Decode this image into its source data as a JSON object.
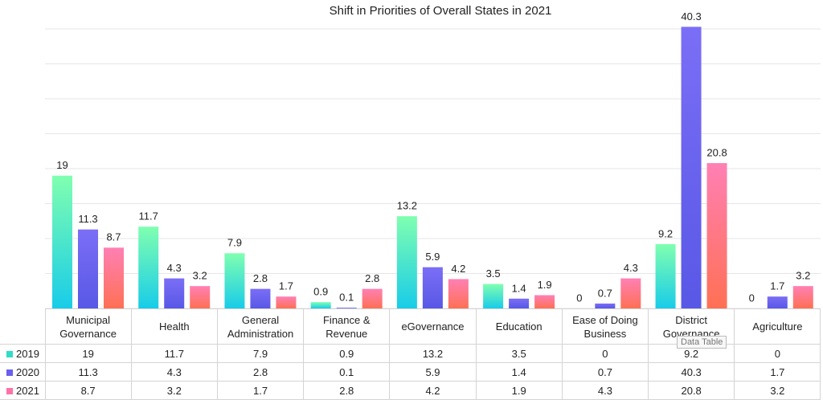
{
  "chart_data": {
    "type": "bar",
    "title": "Shift in Priorities of Overall States in 2021",
    "categories": [
      "Municipal Governance",
      "Health",
      "General Administration",
      "Finance & Revenue",
      "eGovernance",
      "Education",
      "Ease of Doing Business",
      "District Governance",
      "Agriculture"
    ],
    "series": [
      {
        "name": "2019",
        "color": "#2fdcc8",
        "gradient": [
          "#80ffb0",
          "#18cce8"
        ],
        "values": [
          19,
          11.7,
          7.9,
          0.9,
          13.2,
          3.5,
          0,
          9.2,
          0
        ]
      },
      {
        "name": "2020",
        "color": "#6a60ee",
        "gradient": [
          "#7b6ef6",
          "#5858e6"
        ],
        "values": [
          11.3,
          4.3,
          2.8,
          0.1,
          5.9,
          1.4,
          0.7,
          40.3,
          1.7
        ]
      },
      {
        "name": "2021",
        "color": "#ff72a8",
        "gradient": [
          "#ff80b4",
          "#ff7054"
        ],
        "values": [
          8.7,
          3.2,
          1.7,
          2.8,
          4.2,
          1.9,
          4.3,
          20.8,
          3.2
        ]
      }
    ],
    "ylim": [
      0,
      40
    ],
    "yticks": [
      0,
      5,
      10,
      15,
      20,
      25,
      30,
      35,
      40
    ],
    "grid": true,
    "data_table": true,
    "tooltip": "Data Table"
  }
}
